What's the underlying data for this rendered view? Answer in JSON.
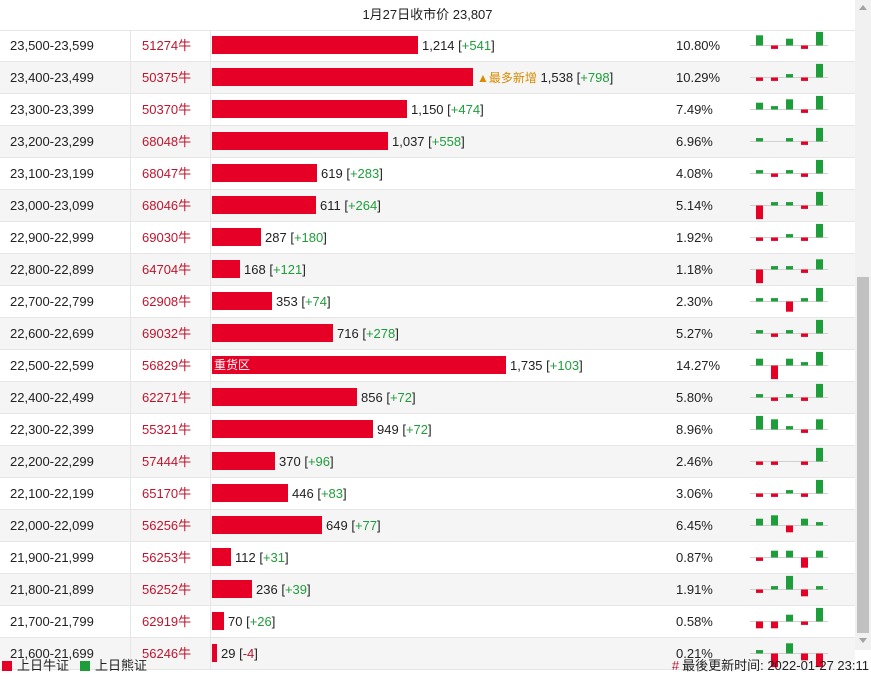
{
  "header": {
    "title": "1月27日收市价 23,807"
  },
  "rows": [
    {
      "range": "23,500-23,599",
      "code": "51274牛",
      "count": "1,214",
      "change": "+541",
      "pct": "10.80%",
      "bar": 1214,
      "spark": [
        3,
        -1,
        2,
        -1,
        4
      ]
    },
    {
      "range": "23,400-23,499",
      "code": "50375牛",
      "count": "1,538",
      "change": "+798",
      "pct": "10.29%",
      "bar": 1538,
      "tag": "▲最多新增",
      "spark": [
        -1,
        -1,
        1,
        -1,
        4
      ]
    },
    {
      "range": "23,300-23,399",
      "code": "50370牛",
      "count": "1,150",
      "change": "+474",
      "pct": "7.49%",
      "bar": 1150,
      "spark": [
        2,
        1,
        3,
        -1,
        4
      ]
    },
    {
      "range": "23,200-23,299",
      "code": "68048牛",
      "count": "1,037",
      "change": "+558",
      "pct": "6.96%",
      "bar": 1037,
      "spark": [
        1,
        0,
        1,
        -1,
        4
      ]
    },
    {
      "range": "23,100-23,199",
      "code": "68047牛",
      "count": "619",
      "change": "+283",
      "pct": "4.08%",
      "bar": 619,
      "spark": [
        1,
        -1,
        1,
        -1,
        4
      ]
    },
    {
      "range": "23,000-23,099",
      "code": "68046牛",
      "count": "611",
      "change": "+264",
      "pct": "5.14%",
      "bar": 611,
      "spark": [
        -4,
        1,
        1,
        -1,
        4
      ]
    },
    {
      "range": "22,900-22,999",
      "code": "69030牛",
      "count": "287",
      "change": "+180",
      "pct": "1.92%",
      "bar": 287,
      "spark": [
        -1,
        -1,
        1,
        -1,
        4
      ]
    },
    {
      "range": "22,800-22,899",
      "code": "64704牛",
      "count": "168",
      "change": "+121",
      "pct": "1.18%",
      "bar": 168,
      "spark": [
        -4,
        1,
        1,
        -1,
        3
      ]
    },
    {
      "range": "22,700-22,799",
      "code": "62908牛",
      "count": "353",
      "change": "+74",
      "pct": "2.30%",
      "bar": 353,
      "spark": [
        1,
        1,
        -3,
        1,
        4
      ]
    },
    {
      "range": "22,600-22,699",
      "code": "69032牛",
      "count": "716",
      "change": "+278",
      "pct": "5.27%",
      "bar": 716,
      "spark": [
        1,
        -1,
        1,
        -1,
        4
      ]
    },
    {
      "range": "22,500-22,599",
      "code": "56829牛",
      "count": "1,735",
      "change": "+103",
      "pct": "14.27%",
      "bar": 1735,
      "label": "重货区",
      "spark": [
        2,
        -4,
        2,
        1,
        4
      ]
    },
    {
      "range": "22,400-22,499",
      "code": "62271牛",
      "count": "856",
      "change": "+72",
      "pct": "5.80%",
      "bar": 856,
      "spark": [
        1,
        -1,
        1,
        -1,
        4
      ]
    },
    {
      "range": "22,300-22,399",
      "code": "55321牛",
      "count": "949",
      "change": "+72",
      "pct": "8.96%",
      "bar": 949,
      "spark": [
        4,
        3,
        1,
        -1,
        3
      ]
    },
    {
      "range": "22,200-22,299",
      "code": "57444牛",
      "count": "370",
      "change": "+96",
      "pct": "2.46%",
      "bar": 370,
      "spark": [
        -1,
        -1,
        0,
        -1,
        4
      ]
    },
    {
      "range": "22,100-22,199",
      "code": "65170牛",
      "count": "446",
      "change": "+83",
      "pct": "3.06%",
      "bar": 446,
      "spark": [
        -1,
        -1,
        1,
        -1,
        4
      ]
    },
    {
      "range": "22,000-22,099",
      "code": "56256牛",
      "count": "649",
      "change": "+77",
      "pct": "6.45%",
      "bar": 649,
      "spark": [
        2,
        3,
        -2,
        2,
        1
      ]
    },
    {
      "range": "21,900-21,999",
      "code": "56253牛",
      "count": "112",
      "change": "+31",
      "pct": "0.87%",
      "bar": 112,
      "spark": [
        -1,
        2,
        2,
        -3,
        2
      ]
    },
    {
      "range": "21,800-21,899",
      "code": "56252牛",
      "count": "236",
      "change": "+39",
      "pct": "1.91%",
      "bar": 236,
      "spark": [
        -1,
        1,
        4,
        -2,
        1
      ]
    },
    {
      "range": "21,700-21,799",
      "code": "62919牛",
      "count": "70",
      "change": "+26",
      "pct": "0.58%",
      "bar": 70,
      "spark": [
        -2,
        -2,
        2,
        -1,
        4
      ]
    },
    {
      "range": "21,600-21,699",
      "code": "56246牛",
      "count": "29",
      "change": "-4",
      "pct": "0.21%",
      "bar": 29,
      "spark": [
        1,
        -4,
        3,
        -2,
        -4
      ]
    }
  ],
  "legend": {
    "bull_label": "上日牛证",
    "bear_label": "上日熊证",
    "bull_color": "#e60026",
    "bear_color": "#1e9e3a"
  },
  "footer": {
    "update_label": "最後更新时间: 2022-01-27 23:11"
  }
}
